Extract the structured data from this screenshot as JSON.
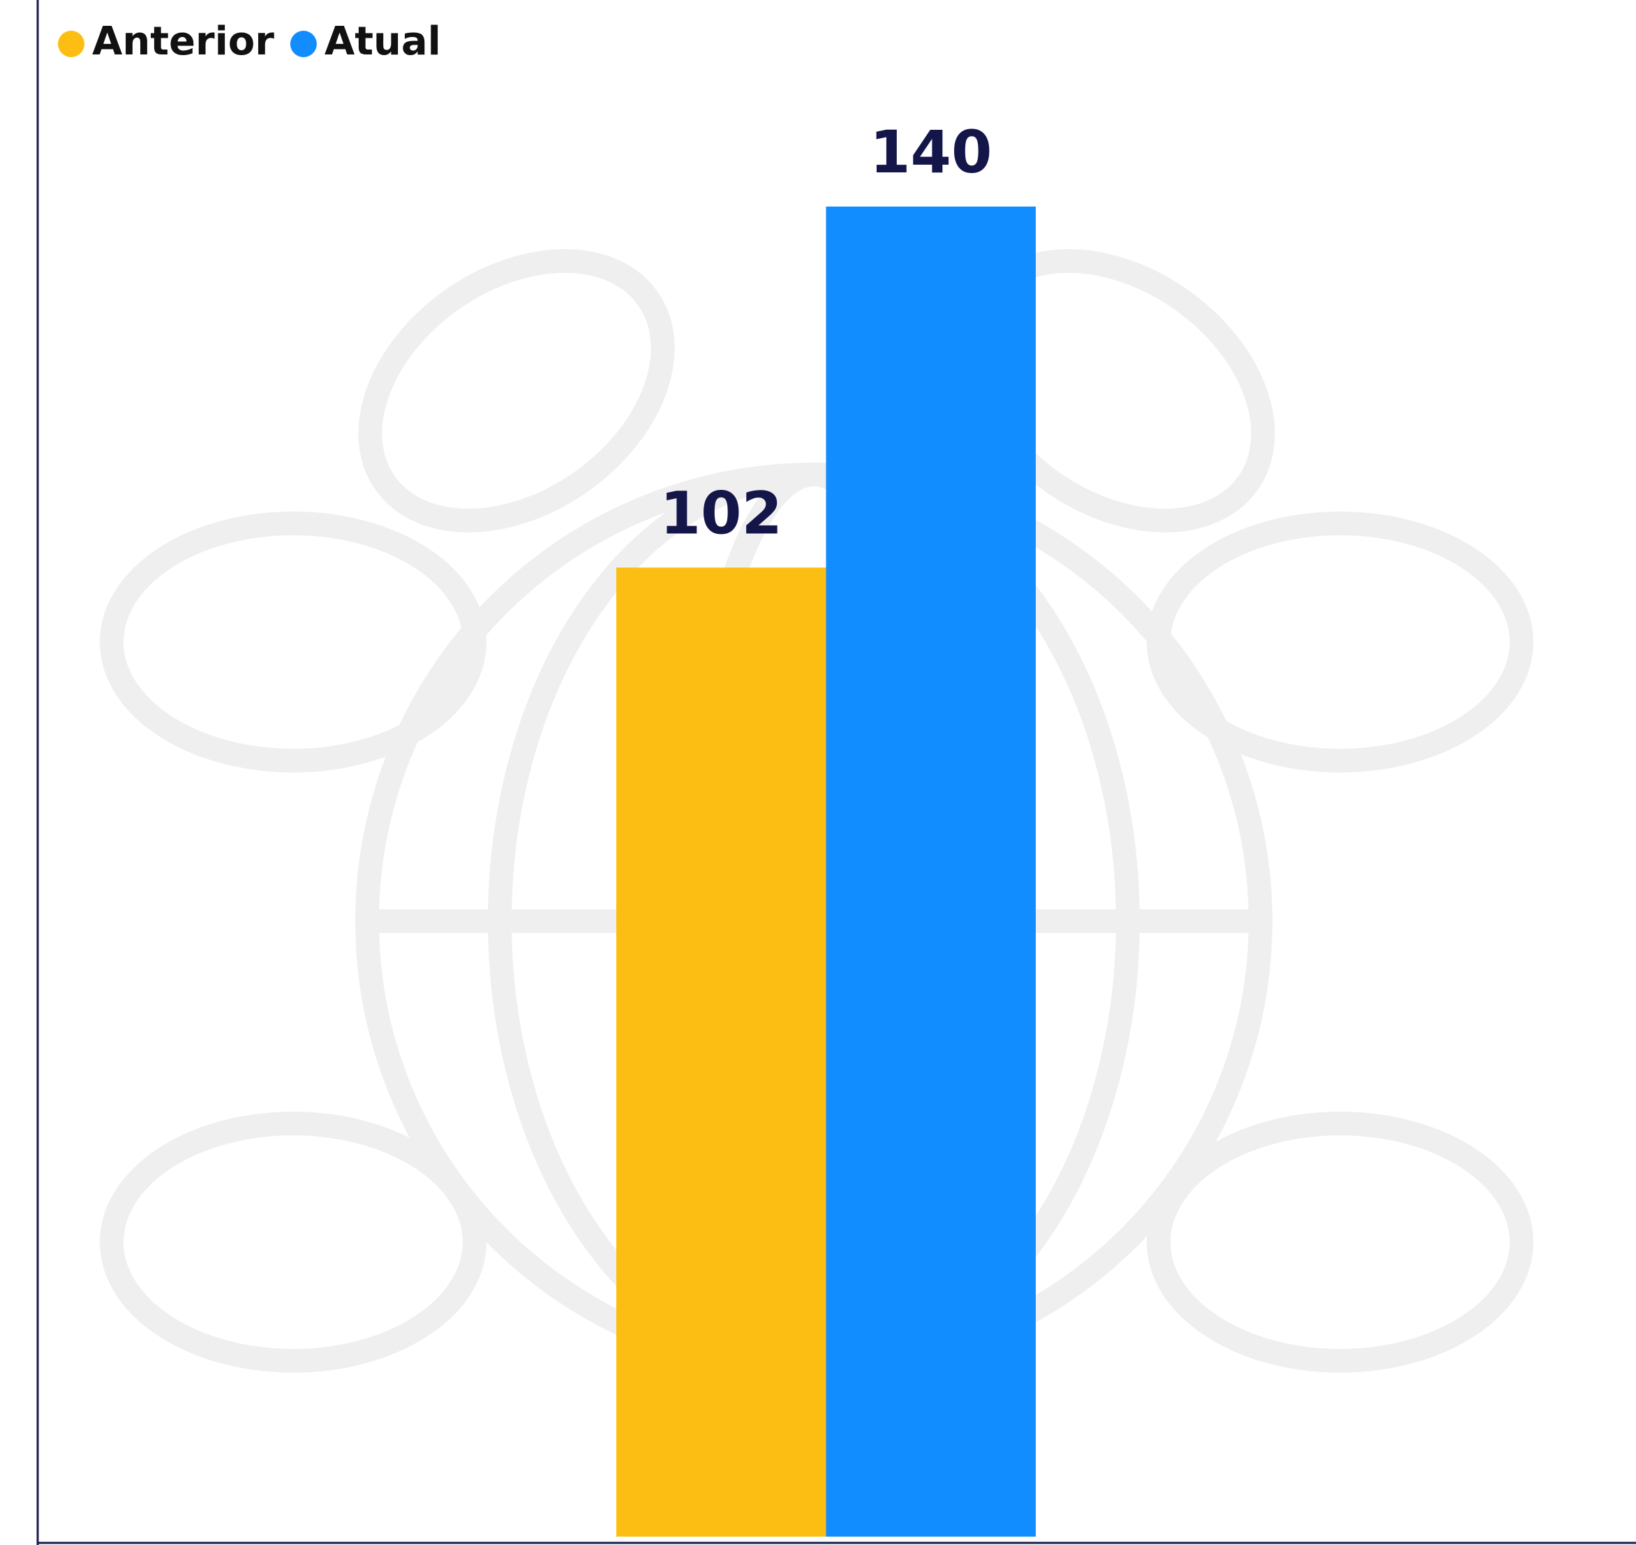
{
  "chart_data": {
    "type": "bar",
    "categories": [
      null
    ],
    "series": [
      {
        "name": "Anterior",
        "color": "#fdbe14",
        "values": [
          102
        ]
      },
      {
        "name": "Atual",
        "color": "#118dff",
        "values": [
          140
        ]
      }
    ],
    "legend": "top-left"
  }
}
